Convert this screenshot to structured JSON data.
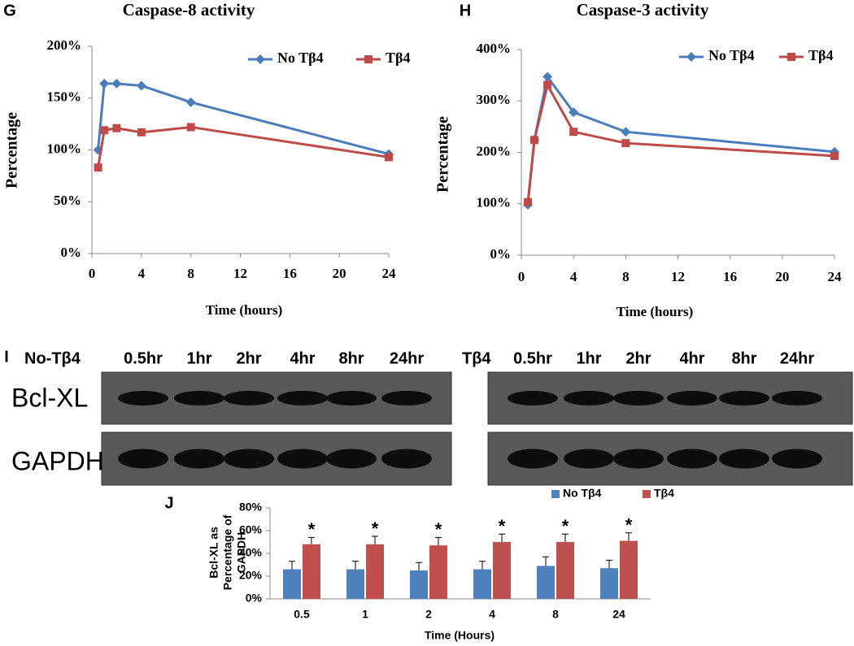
{
  "chart_data": [
    {
      "type": "line",
      "panel_label": "G",
      "title": "Caspase-8 activity",
      "xlabel": "Time (hours)",
      "ylabel": "Percentage",
      "x": [
        0.5,
        1,
        2,
        4,
        8,
        24
      ],
      "series": [
        {
          "name": "No Tβ4",
          "color": "#4a7ebb",
          "marker": "diamond",
          "values": [
            100,
            164,
            164,
            162,
            146,
            96
          ]
        },
        {
          "name": "Tβ4",
          "color": "#be4b48",
          "marker": "square",
          "values": [
            83,
            119,
            121,
            117,
            122,
            93
          ]
        }
      ],
      "xlim": [
        0,
        24
      ],
      "xticks": [
        0,
        4,
        8,
        12,
        16,
        20,
        24
      ],
      "ylim": [
        0,
        200
      ],
      "yticks": [
        {
          "value": 0,
          "label": "0%"
        },
        {
          "value": 50,
          "label": "50%"
        },
        {
          "value": 100,
          "label": "100%"
        },
        {
          "value": 150,
          "label": "150%"
        },
        {
          "value": 200,
          "label": "200%"
        }
      ]
    },
    {
      "type": "line",
      "panel_label": "H",
      "title": "Caspase-3 activity",
      "xlabel": "Time (hours)",
      "ylabel": "Percentage",
      "x": [
        0.5,
        1,
        2,
        4,
        8,
        24
      ],
      "series": [
        {
          "name": "No Tβ4",
          "color": "#4a7ebb",
          "marker": "diamond",
          "values": [
            98,
            225,
            347,
            278,
            240,
            201
          ]
        },
        {
          "name": "Tβ4",
          "color": "#be4b48",
          "marker": "square",
          "values": [
            103,
            224,
            331,
            240,
            218,
            193
          ]
        }
      ],
      "xlim": [
        0,
        24
      ],
      "xticks": [
        0,
        4,
        8,
        12,
        16,
        20,
        24
      ],
      "ylim": [
        0,
        400
      ],
      "yticks": [
        {
          "value": 0,
          "label": "0%"
        },
        {
          "value": 100,
          "label": "100%"
        },
        {
          "value": 200,
          "label": "200%"
        },
        {
          "value": 300,
          "label": "300%"
        },
        {
          "value": 400,
          "label": "400%"
        }
      ]
    },
    {
      "type": "bar",
      "panel_label": "J",
      "xlabel": "Time (Hours)",
      "ylabel": [
        "Bcl-XL as",
        "Percentage of",
        "GAPDH"
      ],
      "categories": [
        "0.5",
        "1",
        "2",
        "4",
        "8",
        "24"
      ],
      "series": [
        {
          "name": "No Tβ4",
          "color": "#4f81bd",
          "values": [
            26,
            26,
            25,
            26,
            29,
            27
          ],
          "errors": [
            7,
            7,
            7,
            7,
            8,
            7
          ]
        },
        {
          "name": "Tβ4",
          "color": "#c0504d",
          "values": [
            48,
            48,
            47,
            50,
            50,
            51
          ],
          "errors": [
            6,
            7,
            7,
            7,
            7,
            7
          ]
        }
      ],
      "significance_labels": [
        "*",
        "*",
        "*",
        "*",
        "*",
        "*"
      ],
      "ylim": [
        0,
        80
      ],
      "yticks": [
        {
          "value": 0,
          "label": "0%"
        },
        {
          "value": 20,
          "label": "20%"
        },
        {
          "value": 40,
          "label": "40%"
        },
        {
          "value": 60,
          "label": "60%"
        },
        {
          "value": 80,
          "label": "80%"
        }
      ]
    }
  ],
  "blot": {
    "panel_label": "I",
    "left": {
      "group": "No-Tβ4",
      "lanes": [
        "0.5hr",
        "1hr",
        "2hr",
        "4hr",
        "8hr",
        "24hr"
      ]
    },
    "right": {
      "group": "Tβ4",
      "lanes": [
        "0.5hr",
        "1hr",
        "2hr",
        "4hr",
        "8hr",
        "24hr"
      ]
    },
    "proteins": [
      "Bcl-XL",
      "GAPDH"
    ]
  }
}
